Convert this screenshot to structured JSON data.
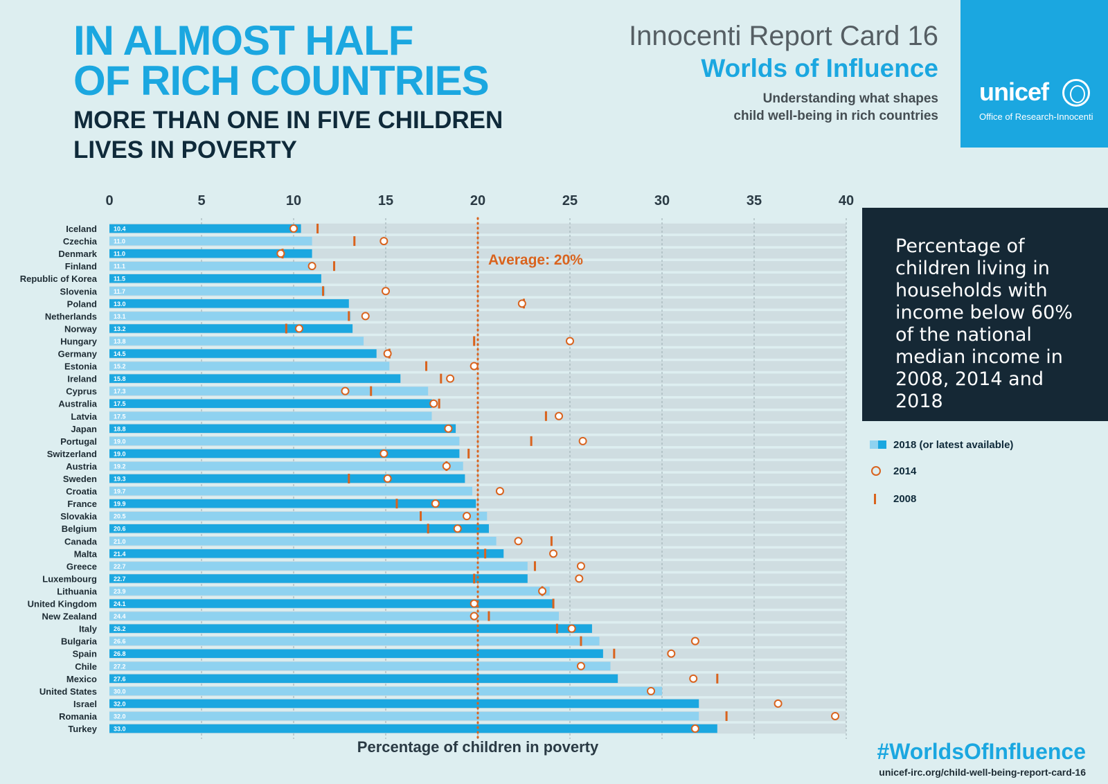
{
  "headline": {
    "line1": "IN ALMOST HALF",
    "line2": "OF RICH COUNTRIES",
    "line3": "MORE THAN ONE IN FIVE CHILDREN",
    "line4": "LIVES IN POVERTY"
  },
  "report": {
    "card": "Innocenti Report Card 16",
    "title": "Worlds of Influence",
    "sub1": "Understanding what shapes",
    "sub2": "child well-being in rich countries"
  },
  "brand": {
    "name": "unicef",
    "office": "Office of Research-Innocenti"
  },
  "description": "Percentage of children living in households with income below 60% of the national median income in 2008, 2014 and 2018",
  "legend": {
    "bar": "2018 (or latest available)",
    "circle": "2014",
    "tick": "2008"
  },
  "footer": {
    "hashtag": "#WorldsOfInfluence",
    "url": "unicef-irc.org/child-well-being-report-card-16"
  },
  "colors": {
    "dark_bar": "#1ba7e0",
    "light_bar": "#8fd2f0",
    "accent": "#d9631e",
    "panel": "#152835"
  },
  "chart_data": {
    "type": "bar",
    "orientation": "horizontal",
    "xlabel": "Percentage of children in poverty",
    "xlim": [
      0,
      40
    ],
    "xticks": [
      0,
      5,
      10,
      15,
      20,
      25,
      30,
      35,
      40
    ],
    "average": {
      "value": 20,
      "label": "Average: 20%"
    },
    "categories": [
      "Iceland",
      "Czechia",
      "Denmark",
      "Finland",
      "Republic of Korea",
      "Slovenia",
      "Poland",
      "Netherlands",
      "Norway",
      "Hungary",
      "Germany",
      "Estonia",
      "Ireland",
      "Cyprus",
      "Australia",
      "Latvia",
      "Japan",
      "Portugal",
      "Switzerland",
      "Austria",
      "Sweden",
      "Croatia",
      "France",
      "Slovakia",
      "Belgium",
      "Canada",
      "Malta",
      "Greece",
      "Luxembourg",
      "Lithuania",
      "United Kingdom",
      "New Zealand",
      "Italy",
      "Bulgaria",
      "Spain",
      "Chile",
      "Mexico",
      "United States",
      "Israel",
      "Romania",
      "Turkey"
    ],
    "value_labels": [
      "10.4",
      "11.0",
      "11.0",
      "11.1",
      "11.5",
      "11.7",
      "13.0",
      "13.1",
      "13.2",
      "13.8",
      "14.5",
      "15.2",
      "15.8",
      "17.3",
      "17.5",
      "17.5",
      "18.8",
      "19.0",
      "19.0",
      "19.2",
      "19.3",
      "19.7",
      "19.9",
      "20.5",
      "20.6",
      "21.0",
      "21.4",
      "22.7",
      "22.7",
      "23.9",
      "24.1",
      "24.4",
      "26.2",
      "26.6",
      "26.8",
      "27.2",
      "27.6",
      "30.0",
      "32.0",
      "32.0",
      "33.0"
    ],
    "series": [
      {
        "name": "2018 (or latest available)",
        "values": [
          10.4,
          11.0,
          11.0,
          11.1,
          11.5,
          11.7,
          13.0,
          13.1,
          13.2,
          13.8,
          14.5,
          15.2,
          15.8,
          17.3,
          17.5,
          17.5,
          18.8,
          19.0,
          19.0,
          19.2,
          19.3,
          19.7,
          19.9,
          20.5,
          20.6,
          21.0,
          21.4,
          22.7,
          22.7,
          23.9,
          24.1,
          24.4,
          26.2,
          26.6,
          26.8,
          27.2,
          27.6,
          30.0,
          32.0,
          32.0,
          33.0
        ]
      },
      {
        "name": "2014",
        "values": [
          10.0,
          14.9,
          9.3,
          11.0,
          null,
          15.0,
          22.4,
          13.9,
          10.3,
          25.0,
          15.1,
          19.8,
          18.5,
          12.8,
          17.6,
          24.4,
          18.4,
          25.7,
          14.9,
          18.3,
          15.1,
          21.2,
          17.7,
          19.4,
          18.9,
          22.2,
          24.1,
          25.6,
          25.5,
          23.5,
          19.8,
          19.8,
          25.1,
          31.8,
          30.5,
          25.6,
          31.7,
          29.4,
          36.3,
          39.4,
          31.8
        ]
      },
      {
        "name": "2008",
        "values": [
          11.3,
          13.3,
          9.4,
          12.2,
          null,
          11.6,
          22.5,
          13.0,
          9.6,
          19.8,
          15.2,
          17.2,
          18.0,
          14.2,
          17.9,
          23.7,
          null,
          22.9,
          19.5,
          18.3,
          13.0,
          null,
          15.6,
          16.9,
          17.3,
          24.0,
          20.4,
          23.1,
          19.8,
          23.5,
          24.1,
          20.6,
          24.3,
          25.6,
          27.4,
          null,
          33.0,
          null,
          null,
          33.5,
          null
        ]
      }
    ]
  }
}
